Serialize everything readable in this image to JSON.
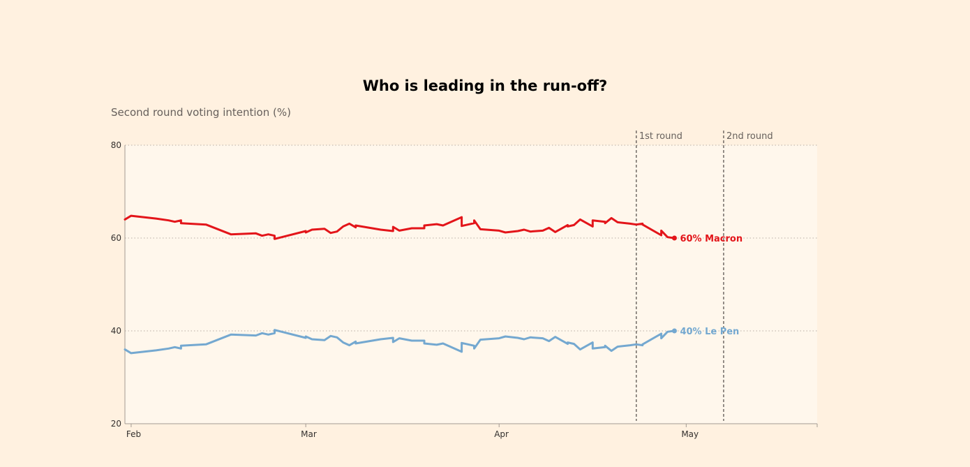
{
  "chart_data": {
    "type": "line",
    "title": "Who is leading in the run-off?",
    "subtitle": "Second round voting intention (%)",
    "ylim": [
      20,
      80
    ],
    "yticks": [
      20,
      40,
      60,
      80
    ],
    "xlim": [
      "2017-01-31",
      "2017-05-22"
    ],
    "xticks": [
      {
        "date": "2017-02-01",
        "label": "Feb"
      },
      {
        "date": "2017-03-01",
        "label": "Mar"
      },
      {
        "date": "2017-04-01",
        "label": "Apr"
      },
      {
        "date": "2017-05-01",
        "label": "May"
      }
    ],
    "annotations": [
      {
        "date": "2017-04-23",
        "label": "1st round"
      },
      {
        "date": "2017-05-07",
        "label": "2nd round"
      }
    ],
    "series": [
      {
        "name": "Macron",
        "end_label": "60% Macron",
        "color": "#e3151a",
        "points": [
          [
            "2017-01-31",
            64
          ],
          [
            "2017-02-01",
            64.8
          ],
          [
            "2017-02-05",
            64.2
          ],
          [
            "2017-02-07",
            63.8
          ],
          [
            "2017-02-08",
            63.5
          ],
          [
            "2017-02-09",
            63.8
          ],
          [
            "2017-02-09",
            63.2
          ],
          [
            "2017-02-13",
            62.9
          ],
          [
            "2017-02-17",
            60.8
          ],
          [
            "2017-02-21",
            61
          ],
          [
            "2017-02-22",
            60.5
          ],
          [
            "2017-02-23",
            60.8
          ],
          [
            "2017-02-24",
            60.5
          ],
          [
            "2017-02-24",
            59.8
          ],
          [
            "2017-03-01",
            61.5
          ],
          [
            "2017-03-01",
            61.2
          ],
          [
            "2017-03-02",
            61.8
          ],
          [
            "2017-03-04",
            62
          ],
          [
            "2017-03-05",
            61.1
          ],
          [
            "2017-03-06",
            61.4
          ],
          [
            "2017-03-07",
            62.5
          ],
          [
            "2017-03-08",
            63.1
          ],
          [
            "2017-03-09",
            62.3
          ],
          [
            "2017-03-09",
            62.7
          ],
          [
            "2017-03-13",
            61.8
          ],
          [
            "2017-03-15",
            61.5
          ],
          [
            "2017-03-15",
            62.4
          ],
          [
            "2017-03-16",
            61.6
          ],
          [
            "2017-03-18",
            62.1
          ],
          [
            "2017-03-20",
            62.1
          ],
          [
            "2017-03-20",
            62.7
          ],
          [
            "2017-03-22",
            63
          ],
          [
            "2017-03-23",
            62.7
          ],
          [
            "2017-03-26",
            64.5
          ],
          [
            "2017-03-26",
            62.6
          ],
          [
            "2017-03-28",
            63.2
          ],
          [
            "2017-03-28",
            63.8
          ],
          [
            "2017-03-29",
            61.9
          ],
          [
            "2017-04-01",
            61.6
          ],
          [
            "2017-04-02",
            61.2
          ],
          [
            "2017-04-04",
            61.5
          ],
          [
            "2017-04-05",
            61.8
          ],
          [
            "2017-04-06",
            61.4
          ],
          [
            "2017-04-08",
            61.6
          ],
          [
            "2017-04-09",
            62.2
          ],
          [
            "2017-04-10",
            61.3
          ],
          [
            "2017-04-12",
            62.8
          ],
          [
            "2017-04-12",
            62.5
          ],
          [
            "2017-04-13",
            62.8
          ],
          [
            "2017-04-14",
            64
          ],
          [
            "2017-04-16",
            62.5
          ],
          [
            "2017-04-16",
            63.8
          ],
          [
            "2017-04-18",
            63.5
          ],
          [
            "2017-04-18",
            63.2
          ],
          [
            "2017-04-19",
            64.3
          ],
          [
            "2017-04-20",
            63.4
          ],
          [
            "2017-04-22",
            63.1
          ],
          [
            "2017-04-23",
            62.9
          ],
          [
            "2017-04-24",
            63.1
          ],
          [
            "2017-04-24",
            62.9
          ],
          [
            "2017-04-27",
            60.6
          ],
          [
            "2017-04-27",
            61.6
          ],
          [
            "2017-04-28",
            60.2
          ],
          [
            "2017-04-29",
            60
          ]
        ]
      },
      {
        "name": "Le Pen",
        "end_label": "40% Le Pen",
        "color": "#74a8d0",
        "points": [
          [
            "2017-01-31",
            36
          ],
          [
            "2017-02-01",
            35.2
          ],
          [
            "2017-02-05",
            35.8
          ],
          [
            "2017-02-07",
            36.2
          ],
          [
            "2017-02-08",
            36.5
          ],
          [
            "2017-02-09",
            36.2
          ],
          [
            "2017-02-09",
            36.8
          ],
          [
            "2017-02-13",
            37.1
          ],
          [
            "2017-02-17",
            39.2
          ],
          [
            "2017-02-21",
            39
          ],
          [
            "2017-02-22",
            39.5
          ],
          [
            "2017-02-23",
            39.2
          ],
          [
            "2017-02-24",
            39.5
          ],
          [
            "2017-02-24",
            40.2
          ],
          [
            "2017-03-01",
            38.5
          ],
          [
            "2017-03-01",
            38.8
          ],
          [
            "2017-03-02",
            38.2
          ],
          [
            "2017-03-04",
            38
          ],
          [
            "2017-03-05",
            38.9
          ],
          [
            "2017-03-06",
            38.6
          ],
          [
            "2017-03-07",
            37.5
          ],
          [
            "2017-03-08",
            36.9
          ],
          [
            "2017-03-09",
            37.7
          ],
          [
            "2017-03-09",
            37.3
          ],
          [
            "2017-03-13",
            38.2
          ],
          [
            "2017-03-15",
            38.5
          ],
          [
            "2017-03-15",
            37.6
          ],
          [
            "2017-03-16",
            38.4
          ],
          [
            "2017-03-18",
            37.9
          ],
          [
            "2017-03-20",
            37.9
          ],
          [
            "2017-03-20",
            37.3
          ],
          [
            "2017-03-22",
            37
          ],
          [
            "2017-03-23",
            37.3
          ],
          [
            "2017-03-26",
            35.5
          ],
          [
            "2017-03-26",
            37.4
          ],
          [
            "2017-03-28",
            36.8
          ],
          [
            "2017-03-28",
            36.2
          ],
          [
            "2017-03-29",
            38.1
          ],
          [
            "2017-04-01",
            38.4
          ],
          [
            "2017-04-02",
            38.8
          ],
          [
            "2017-04-04",
            38.5
          ],
          [
            "2017-04-05",
            38.2
          ],
          [
            "2017-04-06",
            38.6
          ],
          [
            "2017-04-08",
            38.4
          ],
          [
            "2017-04-09",
            37.8
          ],
          [
            "2017-04-10",
            38.7
          ],
          [
            "2017-04-12",
            37.2
          ],
          [
            "2017-04-12",
            37.5
          ],
          [
            "2017-04-13",
            37.2
          ],
          [
            "2017-04-14",
            36
          ],
          [
            "2017-04-16",
            37.5
          ],
          [
            "2017-04-16",
            36.2
          ],
          [
            "2017-04-18",
            36.5
          ],
          [
            "2017-04-18",
            36.8
          ],
          [
            "2017-04-19",
            35.7
          ],
          [
            "2017-04-20",
            36.6
          ],
          [
            "2017-04-22",
            36.9
          ],
          [
            "2017-04-23",
            37.1
          ],
          [
            "2017-04-24",
            36.9
          ],
          [
            "2017-04-24",
            37.1
          ],
          [
            "2017-04-27",
            39.4
          ],
          [
            "2017-04-27",
            38.4
          ],
          [
            "2017-04-28",
            39.8
          ],
          [
            "2017-04-29",
            40
          ]
        ]
      }
    ]
  }
}
